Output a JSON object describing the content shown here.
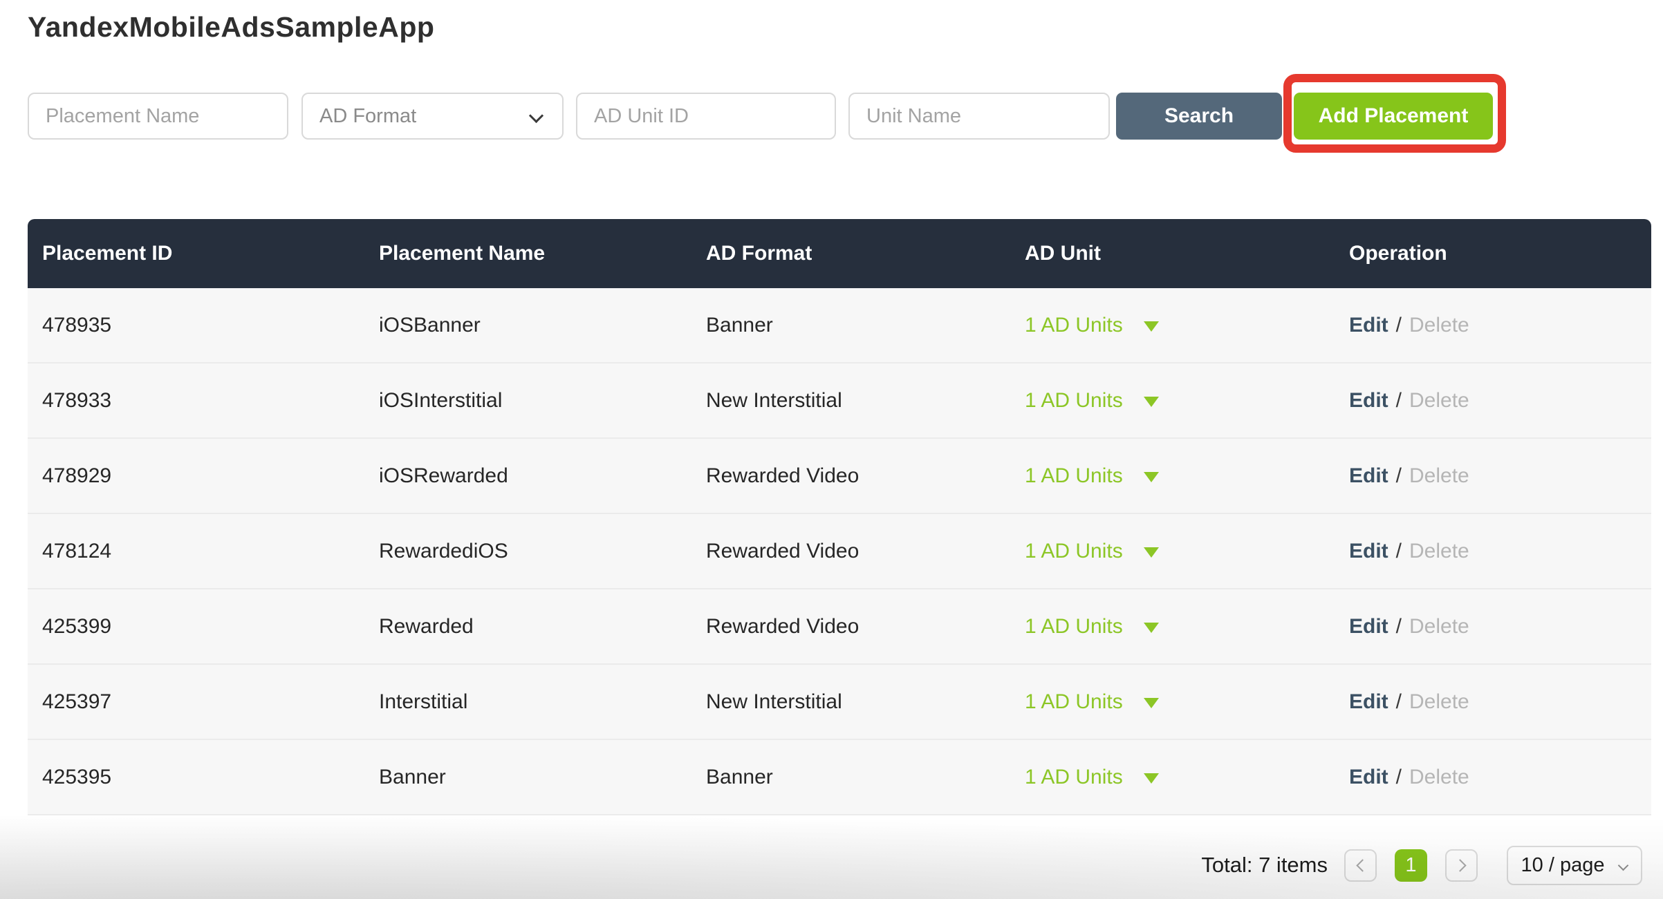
{
  "title": "YandexMobileAdsSampleApp",
  "filters": {
    "placement_name": {
      "placeholder": "Placement Name",
      "value": ""
    },
    "ad_format": {
      "selected": "AD Format"
    },
    "ad_unit_id": {
      "placeholder": "AD Unit ID",
      "value": ""
    },
    "unit_name": {
      "placeholder": "Unit Name",
      "value": ""
    },
    "search_label": "Search",
    "add_placement_label": "Add Placement"
  },
  "table": {
    "headers": [
      "Placement ID",
      "Placement Name",
      "AD Format",
      "AD Unit",
      "Operation"
    ],
    "labels": {
      "edit": "Edit",
      "separator": "/",
      "delete": "Delete"
    },
    "rows": [
      {
        "placement_id": "478935",
        "placement_name": "iOSBanner",
        "ad_format": "Banner",
        "ad_unit": "1 AD Units"
      },
      {
        "placement_id": "478933",
        "placement_name": "iOSInterstitial",
        "ad_format": "New Interstitial",
        "ad_unit": "1 AD Units"
      },
      {
        "placement_id": "478929",
        "placement_name": "iOSRewarded",
        "ad_format": "Rewarded Video",
        "ad_unit": "1 AD Units"
      },
      {
        "placement_id": "478124",
        "placement_name": "RewardediOS",
        "ad_format": "Rewarded Video",
        "ad_unit": "1 AD Units"
      },
      {
        "placement_id": "425399",
        "placement_name": "Rewarded",
        "ad_format": "Rewarded Video",
        "ad_unit": "1 AD Units"
      },
      {
        "placement_id": "425397",
        "placement_name": "Interstitial",
        "ad_format": "New Interstitial",
        "ad_unit": "1 AD Units"
      },
      {
        "placement_id": "425395",
        "placement_name": "Banner",
        "ad_format": "Banner",
        "ad_unit": "1 AD Units"
      }
    ]
  },
  "pagination": {
    "total_text": "Total: 7 items",
    "current_page": "1",
    "page_size": "10 / page"
  },
  "colors": {
    "accent_green": "#86c51a",
    "green_text": "#8cc626",
    "table_header_bg": "#262f3d",
    "search_button_bg": "#54687a",
    "annotation_red": "#e6392e",
    "edit_link": "#3c5164",
    "delete_link": "#b5b5b5",
    "row_bg": "#f7f7f7"
  }
}
